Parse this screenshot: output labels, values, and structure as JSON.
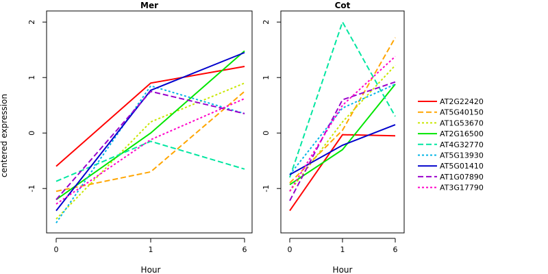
{
  "chart_data": {
    "type": "line",
    "ylabel": "centered expression",
    "xlabel": "Hour",
    "x_categories": [
      "0",
      "1",
      "6"
    ],
    "y_ticks": [
      -1,
      0,
      1,
      2
    ],
    "ylim": [
      -1.8,
      2.2
    ],
    "legend_position": "right",
    "legend": [
      {
        "name": "AT2G22420",
        "color": "#ff0000",
        "dash": "solid"
      },
      {
        "name": "AT5G40150",
        "color": "#ffa500",
        "dash": "long-dash"
      },
      {
        "name": "AT1G53670",
        "color": "#c8e600",
        "dash": "dotted"
      },
      {
        "name": "AT2G16500",
        "color": "#00e600",
        "dash": "solid"
      },
      {
        "name": "AT4G32770",
        "color": "#00e6a0",
        "dash": "long-dash"
      },
      {
        "name": "AT5G13930",
        "color": "#00b4e6",
        "dash": "dotted"
      },
      {
        "name": "AT5G01410",
        "color": "#0000cc",
        "dash": "solid"
      },
      {
        "name": "AT1G07890",
        "color": "#9900cc",
        "dash": "long-dash"
      },
      {
        "name": "AT3G17790",
        "color": "#ff00c8",
        "dash": "dotted"
      }
    ],
    "panels": [
      {
        "title": "Mer",
        "series": [
          {
            "name": "AT2G22420",
            "values": [
              -0.6,
              0.9,
              1.2
            ]
          },
          {
            "name": "AT5G40150",
            "values": [
              -1.05,
              -0.7,
              0.75
            ]
          },
          {
            "name": "AT1G53670",
            "values": [
              -1.55,
              0.2,
              0.9
            ]
          },
          {
            "name": "AT2G16500",
            "values": [
              -1.2,
              0.0,
              1.48
            ]
          },
          {
            "name": "AT4G32770",
            "values": [
              -0.87,
              -0.15,
              -0.65
            ]
          },
          {
            "name": "AT5G13930",
            "values": [
              -1.62,
              0.85,
              0.35
            ]
          },
          {
            "name": "AT5G01410",
            "values": [
              -1.4,
              0.77,
              1.45
            ]
          },
          {
            "name": "AT1G07890",
            "values": [
              -1.2,
              0.75,
              0.35
            ]
          },
          {
            "name": "AT3G17790",
            "values": [
              -1.28,
              -0.12,
              0.62
            ]
          }
        ]
      },
      {
        "title": "Cot",
        "series": [
          {
            "name": "AT2G22420",
            "values": [
              -1.4,
              -0.03,
              -0.05
            ]
          },
          {
            "name": "AT5G40150",
            "values": [
              -0.9,
              0.05,
              1.72
            ]
          },
          {
            "name": "AT1G53670",
            "values": [
              -1.05,
              0.2,
              1.22
            ]
          },
          {
            "name": "AT2G16500",
            "values": [
              -0.93,
              -0.3,
              0.88
            ]
          },
          {
            "name": "AT4G32770",
            "values": [
              -0.8,
              2.0,
              0.3
            ]
          },
          {
            "name": "AT5G13930",
            "values": [
              -0.75,
              0.45,
              0.88
            ]
          },
          {
            "name": "AT5G01410",
            "values": [
              -0.75,
              -0.22,
              0.15
            ]
          },
          {
            "name": "AT1G07890",
            "values": [
              -1.22,
              0.6,
              0.92
            ]
          },
          {
            "name": "AT3G17790",
            "values": [
              -1.05,
              0.5,
              1.38
            ]
          }
        ]
      }
    ]
  }
}
